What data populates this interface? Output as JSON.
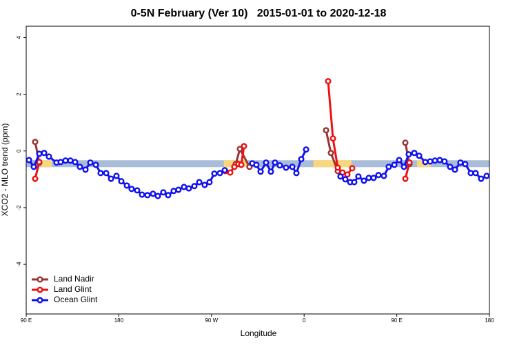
{
  "chart_data": {
    "type": "line",
    "title": "0-5N February (Ver 10)   2015-01-01 to 2020-12-18",
    "x_label": "Longitude",
    "y_label": "XCO2 - MLO trend (ppm)",
    "xlim": [
      90,
      540
    ],
    "ylim": [
      -5.75,
      4.4
    ],
    "xticks": [
      {
        "value": 90,
        "label": "90 E"
      },
      180,
      {
        "value": 270,
        "label": "90 W"
      },
      {
        "value": 360,
        "label": "0"
      },
      {
        "value": 450,
        "label": "90 E"
      },
      {
        "value": 540,
        "label": "180"
      }
    ],
    "yticks": [
      -4,
      -2,
      0,
      2,
      4
    ],
    "reference_band": {
      "value": -0.45,
      "color": "#a9bcd8"
    },
    "highlight_ranges": {
      "color": "#f9d77c",
      "ranges": [
        [
          104.7,
          114.8
        ],
        [
          282,
          305.6
        ],
        [
          369,
          406
        ],
        [
          469.7,
          483
        ]
      ]
    },
    "legend": "bottom-left",
    "series": [
      {
        "name": "Land Nadir",
        "color": "#993333",
        "x": [
          98.7,
          102.7,
          null,
          293.6,
          297.6,
          306.9,
          null,
          381.3,
          386.0,
          392.7,
          null,
          458.3,
          462.3
        ],
        "values": [
          0.32,
          -0.41,
          null,
          -0.46,
          0.07,
          -0.56,
          null,
          0.73,
          -0.07,
          -0.71,
          null,
          0.29,
          -0.46
        ]
      },
      {
        "name": "Land Glint",
        "color": "#ee1111",
        "x": [
          98.7,
          102.7,
          null,
          283.5,
          288.2,
          292.2,
          296.2,
          298.9,
          301.6,
          null,
          383.3,
          388.0,
          392.7,
          397.3,
          402.0,
          406.7,
          null,
          458.3,
          462.3
        ],
        "values": [
          -0.98,
          -0.39,
          null,
          -0.71,
          -0.76,
          -0.56,
          -0.46,
          -0.49,
          0.17,
          null,
          2.46,
          0.44,
          -0.59,
          -0.76,
          -0.83,
          -0.61,
          null,
          -0.98,
          -0.41
        ]
      },
      {
        "name": "Ocean Glint",
        "color": "#1111ee",
        "x": [
          92.7,
          97.4,
          102.7,
          107.4,
          112.1,
          119.5,
          123.5,
          128.2,
          132.9,
          137.5,
          142.2,
          147.6,
          152.3,
          157.7,
          162.3,
          167.7,
          172.4,
          177.7,
          182.4,
          187.8,
          192.4,
          197.8,
          202.5,
          207.8,
          213.2,
          217.9,
          223.2,
          227.9,
          233.3,
          237.9,
          243.3,
          248.0,
          253.4,
          258.1,
          263.4,
          268.1,
          272.8,
          278.2,
          282.9,
          null,
          309.6,
          313.6,
          317.7,
          323.0,
          327.7,
          331.7,
          336.4,
          342.4,
          348.5,
          352.5,
          357.2,
          361.9,
          null,
          395.3,
          400.0,
          404.7,
          408.7,
          412.7,
          418.1,
          422.8,
          427.5,
          432.2,
          437.5,
          442.2,
          447.6,
          452.3,
          457.0,
          461.6,
          467.0,
          471.7,
          477.7,
          482.4,
          487.1,
          491.8,
          496.4,
          501.8,
          506.5,
          511.8,
          516.5,
          521.9,
          526.6,
          531.9,
          537.3
        ],
        "values": [
          -0.32,
          -0.56,
          -0.1,
          -0.07,
          -0.2,
          -0.41,
          -0.39,
          -0.34,
          -0.34,
          -0.39,
          -0.56,
          -0.66,
          -0.41,
          -0.49,
          -0.78,
          -0.78,
          -0.98,
          -0.88,
          -1.07,
          -1.22,
          -1.34,
          -1.39,
          -1.54,
          -1.56,
          -1.51,
          -1.59,
          -1.46,
          -1.56,
          -1.41,
          -1.37,
          -1.27,
          -1.32,
          -1.24,
          -1.1,
          -1.2,
          -1.1,
          -0.8,
          -0.78,
          -0.68,
          null,
          -0.44,
          -0.49,
          -0.73,
          -0.41,
          -0.73,
          -0.41,
          -0.51,
          -0.59,
          -0.56,
          -0.78,
          -0.29,
          0.05,
          null,
          -0.9,
          -1.0,
          -1.1,
          -1.1,
          -0.9,
          -1.05,
          -0.95,
          -0.95,
          -0.85,
          -0.88,
          -0.56,
          -0.49,
          -0.32,
          -0.56,
          -0.12,
          -0.07,
          -0.17,
          -0.39,
          -0.37,
          -0.34,
          -0.32,
          -0.37,
          -0.56,
          -0.66,
          -0.41,
          -0.46,
          -0.78,
          -0.78,
          -0.98,
          -0.88
        ]
      }
    ]
  }
}
